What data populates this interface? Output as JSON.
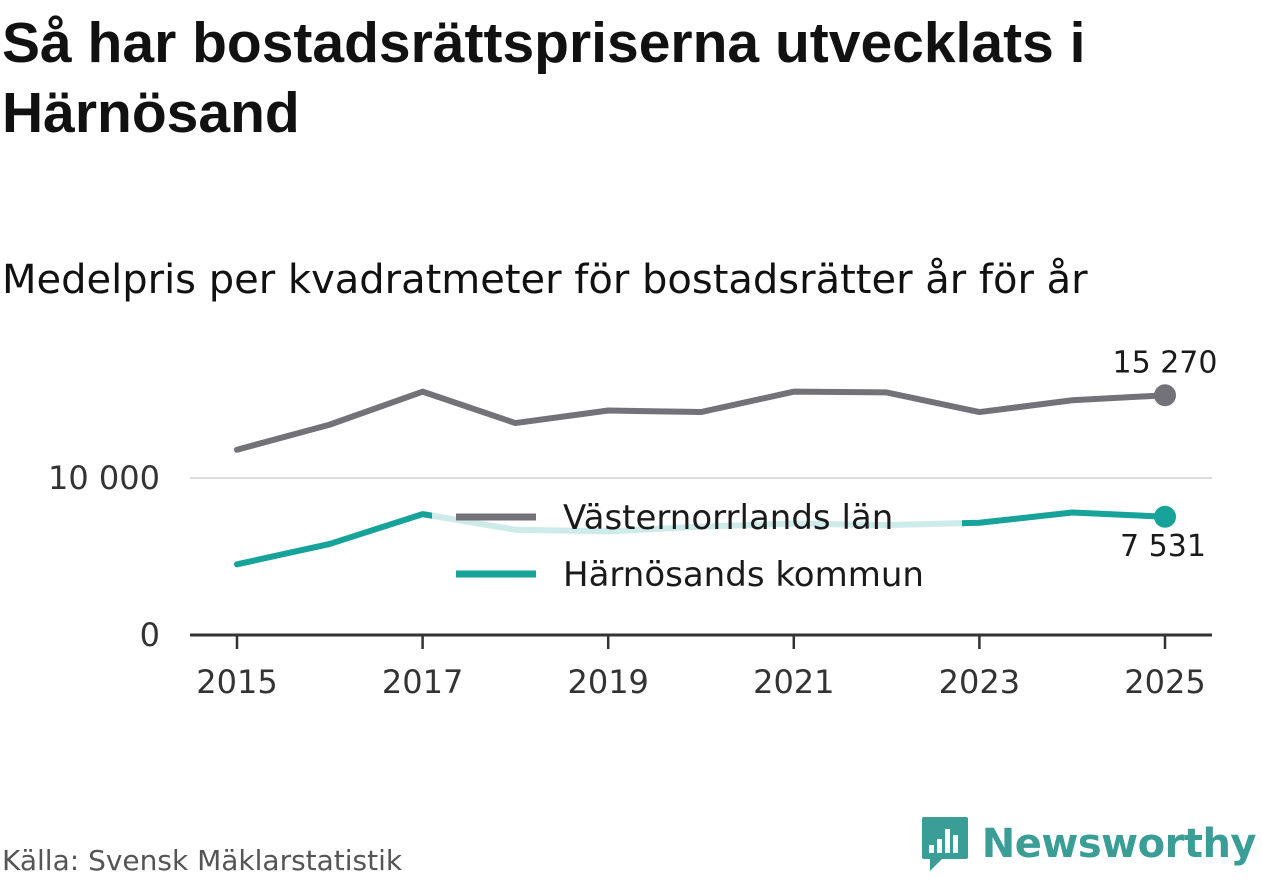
{
  "title": "Så har bostadsrättspriserna utvecklats i Härnösand",
  "subtitle": "Medelpris per kvadratmeter för bostadsrätter år för år",
  "source": "Källa: Svensk Mäklarstatistik",
  "brand": "Newsworthy",
  "colors": {
    "lan": "#737278",
    "kommun": "#17a39a",
    "kommun_faded": "#cfeae8",
    "axis": "#333333",
    "grid": "#dddddd",
    "brand": "#3a9e96"
  },
  "chart_data": {
    "type": "line",
    "title": "Medelpris per kvadratmeter för bostadsrätter år för år",
    "xlabel": "",
    "ylabel": "",
    "x": [
      2015,
      2016,
      2017,
      2018,
      2019,
      2020,
      2021,
      2022,
      2023,
      2024,
      2025
    ],
    "xticks": [
      "2015",
      "2017",
      "2019",
      "2021",
      "2023",
      "2025"
    ],
    "yticks": [
      0,
      10000
    ],
    "ytick_labels": [
      "0",
      "10 000"
    ],
    "ylim": [
      0,
      16500
    ],
    "legend_position": "center",
    "series": [
      {
        "name": "Västernorrlands län",
        "values": [
          11800,
          13400,
          15500,
          13500,
          14300,
          14200,
          15500,
          15450,
          14200,
          14950,
          15270
        ],
        "end_label": "15 270"
      },
      {
        "name": "Härnösands kommun",
        "values": [
          4500,
          5800,
          7700,
          6700,
          6600,
          6900,
          7100,
          7000,
          7150,
          7800,
          7531
        ],
        "end_label": "7 531"
      }
    ]
  }
}
